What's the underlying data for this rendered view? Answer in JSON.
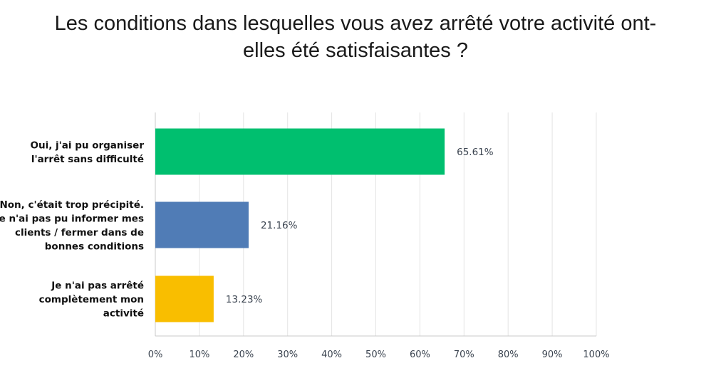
{
  "chart_data": {
    "type": "bar",
    "orientation": "horizontal",
    "title": "Les conditions dans lesquelles vous avez arrêté votre activité ont-elles été satisfaisantes ?",
    "title_lines": [
      "Les conditions dans lesquelles vous avez arrêté votre activité ont-",
      "elles été satisfaisantes ?"
    ],
    "categories": [
      "Oui, j'ai pu organiser l'arrêt sans difficulté",
      "Non, c'était trop précipité. Je n'ai pas pu informer mes clients / fermer dans de bonnes conditions",
      "Je n'ai pas arrêté complètement mon activité"
    ],
    "category_lines": [
      [
        "Oui, j'ai pu organiser",
        "l'arrêt sans difficulté"
      ],
      [
        "Non, c'était trop précipité.",
        "Je n'ai pas pu informer mes",
        "clients / fermer dans de",
        "bonnes conditions"
      ],
      [
        "Je n'ai pas arrêté",
        "complètement mon",
        "activité"
      ]
    ],
    "values": [
      65.61,
      21.16,
      13.23
    ],
    "value_labels": [
      "65.61%",
      "21.16%",
      "13.23%"
    ],
    "colors": [
      "#00bf6f",
      "#507cb6",
      "#f9be00"
    ],
    "xlim": [
      0,
      100
    ],
    "xticks": [
      0,
      10,
      20,
      30,
      40,
      50,
      60,
      70,
      80,
      90,
      100
    ],
    "xtick_labels": [
      "0%",
      "10%",
      "20%",
      "30%",
      "40%",
      "50%",
      "60%",
      "70%",
      "80%",
      "90%",
      "100%"
    ],
    "xlabel": "",
    "ylabel": "",
    "grid": true,
    "legend": "none"
  }
}
